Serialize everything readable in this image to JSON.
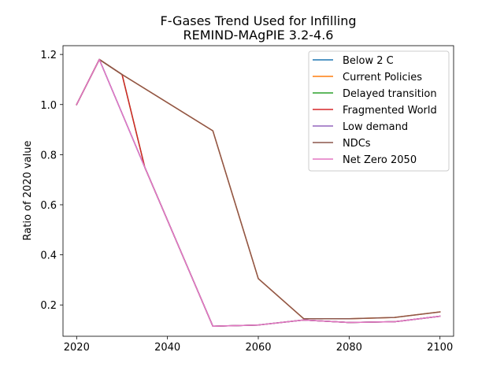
{
  "chart_data": {
    "type": "line",
    "title": [
      "F-Gases Trend Used for Infilling",
      "REMIND-MAgPIE 3.2-4.6"
    ],
    "xlabel": "",
    "ylabel": "Ratio of 2020 value",
    "xlim": [
      2017,
      2103
    ],
    "ylim": [
      0.075,
      1.235
    ],
    "xticks": [
      2020,
      2040,
      2060,
      2080,
      2100
    ],
    "yticks": [
      0.2,
      0.4,
      0.6,
      0.8,
      1.0,
      1.2
    ],
    "xtick_labels": [
      "2020",
      "2040",
      "2060",
      "2080",
      "2100"
    ],
    "ytick_labels": [
      "0.2",
      "0.4",
      "0.6",
      "0.8",
      "1.0",
      "1.2"
    ],
    "grid": false,
    "legend_position": "top-right",
    "series": [
      {
        "name": "Below 2 C",
        "color": "#1f77b4",
        "x": [
          2020,
          2025,
          2035,
          2050,
          2060,
          2070,
          2080,
          2090,
          2100
        ],
        "y": [
          1.0,
          1.18,
          0.75,
          0.115,
          0.12,
          0.14,
          0.13,
          0.133,
          0.155
        ]
      },
      {
        "name": "Current Policies",
        "color": "#ff7f0e",
        "x": [
          2020,
          2025,
          2030,
          2050,
          2060,
          2070,
          2080,
          2090,
          2100
        ],
        "y": [
          1.0,
          1.18,
          1.12,
          0.895,
          0.305,
          0.145,
          0.145,
          0.15,
          0.172
        ]
      },
      {
        "name": "Delayed transition",
        "color": "#2ca02c",
        "x": [
          2020,
          2025,
          2030,
          2035,
          2050,
          2060,
          2070,
          2080,
          2090,
          2100
        ],
        "y": [
          1.0,
          1.18,
          1.12,
          0.75,
          0.115,
          0.12,
          0.14,
          0.13,
          0.133,
          0.155
        ]
      },
      {
        "name": "Fragmented World",
        "color": "#d62728",
        "x": [
          2020,
          2025,
          2030,
          2035,
          2050,
          2060,
          2070,
          2080,
          2090,
          2100
        ],
        "y": [
          1.0,
          1.18,
          1.12,
          0.75,
          0.115,
          0.12,
          0.14,
          0.13,
          0.133,
          0.155
        ]
      },
      {
        "name": "Low demand",
        "color": "#9467bd",
        "x": [
          2020,
          2025,
          2035,
          2050,
          2060,
          2070,
          2080,
          2090,
          2100
        ],
        "y": [
          1.0,
          1.18,
          0.75,
          0.115,
          0.12,
          0.14,
          0.13,
          0.133,
          0.155
        ]
      },
      {
        "name": "NDCs",
        "color": "#8c564b",
        "x": [
          2020,
          2025,
          2030,
          2050,
          2060,
          2070,
          2080,
          2090,
          2100
        ],
        "y": [
          1.0,
          1.18,
          1.12,
          0.895,
          0.305,
          0.145,
          0.145,
          0.15,
          0.172
        ]
      },
      {
        "name": "Net Zero 2050",
        "color": "#e377c2",
        "x": [
          2020,
          2025,
          2035,
          2050,
          2060,
          2070,
          2080,
          2090,
          2100
        ],
        "y": [
          1.0,
          1.18,
          0.75,
          0.115,
          0.12,
          0.14,
          0.13,
          0.133,
          0.155
        ]
      }
    ]
  }
}
